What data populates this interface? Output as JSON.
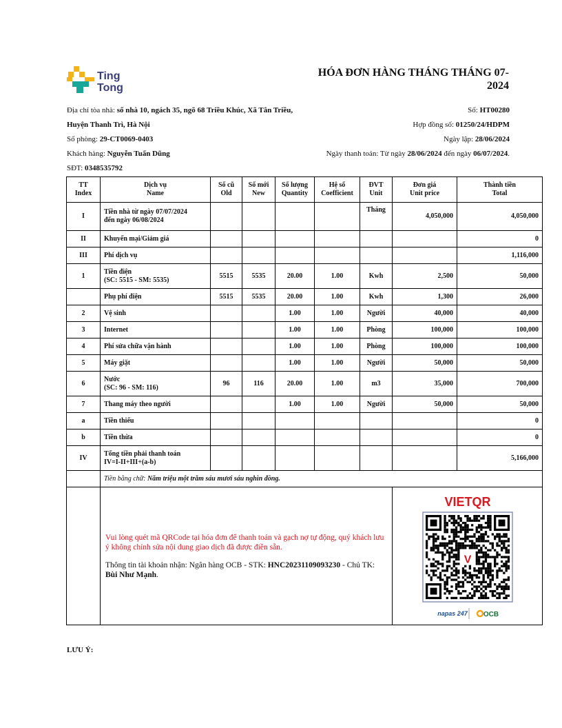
{
  "logo": {
    "brand": "Ting Tong",
    "line1": "Ting",
    "line2": "Tong"
  },
  "title": {
    "line1": "HÓA ĐƠN HÀNG THÁNG THÁNG 07-",
    "line2": "2024"
  },
  "info_left": [
    {
      "label": "Địa chỉ tòa nhà: ",
      "value": "số nhà 10, ngách 35, ngõ 68 Triều Khúc, Xã Tân Triều, Huyện Thanh Trì, Hà Nội"
    },
    {
      "label": "Số phòng: ",
      "value": "29-CT0069-0403"
    },
    {
      "label": "Khách hàng: ",
      "value": "Nguyễn Tuấn Dũng"
    },
    {
      "label": "SĐT: ",
      "value": "0348535792"
    }
  ],
  "info_right": {
    "so_label": "Số: ",
    "so": "HT00280",
    "hopdong_label": "Hợp đồng số: ",
    "hopdong": "01250/24/HDPM",
    "ngaylap_label": "Ngày lập: ",
    "ngaylap": "28/06/2024",
    "thanhtoan_label": "Ngày thanh toán: Từ ngày ",
    "from": "28/06/2024",
    "mid": " đến ngày ",
    "to": "06/07/2024",
    "end": "."
  },
  "table": {
    "headers": [
      [
        "TT",
        "Index"
      ],
      [
        "Dịch vụ",
        "Name"
      ],
      [
        "Số cũ",
        "Old"
      ],
      [
        "Số mới",
        "New"
      ],
      [
        "Số lượng",
        "Quantity"
      ],
      [
        "Hệ số",
        "Coefficient"
      ],
      [
        "ĐVT",
        "Unit"
      ],
      [
        "Đơn giá",
        "Unit price"
      ],
      [
        "Thành tiền",
        "Total"
      ]
    ],
    "rows": [
      {
        "idx": "I",
        "name": "Tiền nhà từ ngày 07/07/2024",
        "name2": "đến ngày 06/08/2024",
        "old": "",
        "new": "",
        "qty": "",
        "coef": "",
        "unit": "Tháng",
        "price": "4,050,000",
        "total": "4,050,000",
        "tall": true,
        "unit_top": true
      },
      {
        "idx": "II",
        "name": "Khuyến mại/Giảm giá",
        "name2": "",
        "old": "",
        "new": "",
        "qty": "",
        "coef": "",
        "unit": "",
        "price": "",
        "total": "0"
      },
      {
        "idx": "III",
        "name": "Phí dịch vụ",
        "name2": "",
        "old": "",
        "new": "",
        "qty": "",
        "coef": "",
        "unit": "",
        "price": "",
        "total": "1,116,000"
      },
      {
        "idx": "1",
        "name": "Tiền điện",
        "name2": "(SC: 5515 - SM: 5535)",
        "old": "5515",
        "new": "5535",
        "qty": "20.00",
        "coef": "1.00",
        "unit": "Kwh",
        "price": "2,500",
        "total": "50,000",
        "tall": true
      },
      {
        "idx": "",
        "name": "Phụ phí điện",
        "name2": "",
        "old": "5515",
        "new": "5535",
        "qty": "20.00",
        "coef": "1.00",
        "unit": "Kwh",
        "price": "1,300",
        "total": "26,000"
      },
      {
        "idx": "2",
        "name": "Vệ sinh",
        "name2": "",
        "old": "",
        "new": "",
        "qty": "1.00",
        "coef": "1.00",
        "unit": "Người",
        "price": "40,000",
        "total": "40,000"
      },
      {
        "idx": "3",
        "name": "Internet",
        "name2": "",
        "old": "",
        "new": "",
        "qty": "1.00",
        "coef": "1.00",
        "unit": "Phòng",
        "price": "100,000",
        "total": "100,000"
      },
      {
        "idx": "4",
        "name": "Phí sửa chữa vận hành",
        "name2": "",
        "old": "",
        "new": "",
        "qty": "1.00",
        "coef": "1.00",
        "unit": "Phòng",
        "price": "100,000",
        "total": "100,000"
      },
      {
        "idx": "5",
        "name": "Máy giặt",
        "name2": "",
        "old": "",
        "new": "",
        "qty": "1.00",
        "coef": "1.00",
        "unit": "Người",
        "price": "50,000",
        "total": "50,000"
      },
      {
        "idx": "6",
        "name": "Nước",
        "name2": "(SC: 96 - SM: 116)",
        "old": "96",
        "new": "116",
        "qty": "20.00",
        "coef": "1.00",
        "unit": "m3",
        "price": "35,000",
        "total": "700,000",
        "tall": true
      },
      {
        "idx": "7",
        "name": "Thang máy theo người",
        "name2": "",
        "old": "",
        "new": "",
        "qty": "1.00",
        "coef": "1.00",
        "unit": "Người",
        "price": "50,000",
        "total": "50,000"
      },
      {
        "idx": "a",
        "name": "Tiền thiếu",
        "name2": "",
        "old": "",
        "new": "",
        "qty": "",
        "coef": "",
        "unit": "",
        "price": "",
        "total": "0"
      },
      {
        "idx": "b",
        "name": "Tiền thừa",
        "name2": "",
        "old": "",
        "new": "",
        "qty": "",
        "coef": "",
        "unit": "",
        "price": "",
        "total": "0"
      },
      {
        "idx": "IV",
        "name": "Tổng tiền phải thanh toán",
        "name2": "IV=I-II+III+(a-b)",
        "old": "",
        "new": "",
        "qty": "",
        "coef": "",
        "unit": "",
        "price": "",
        "total": "5,166,000",
        "tall": true
      }
    ],
    "words_label": "Tiền bằng chữ: ",
    "words_value": "Năm triệu một trăm sáu mươi sáu nghìn đồng."
  },
  "payment": {
    "notice": "Vui lòng quét mã QRCode tại hóa đơn để thanh toán và gạch nợ tự động, quý khách lưu ý không chỉnh sửa nội dung giao dịch đã được điền sẵn.",
    "account_prefix": "Thông tin tài khoản nhận: Ngân hàng OCB - STK: ",
    "account_number": "HNC20231109093230",
    "holder_prefix": " - Chủ TK: ",
    "holder": "Bùi Như Mạnh",
    "holder_end": ".",
    "qr_brand": "VIETQR",
    "napas": "napas 247",
    "bank": "OCB",
    "notice_color": "#e0141e"
  },
  "note": "LƯU Ý:"
}
